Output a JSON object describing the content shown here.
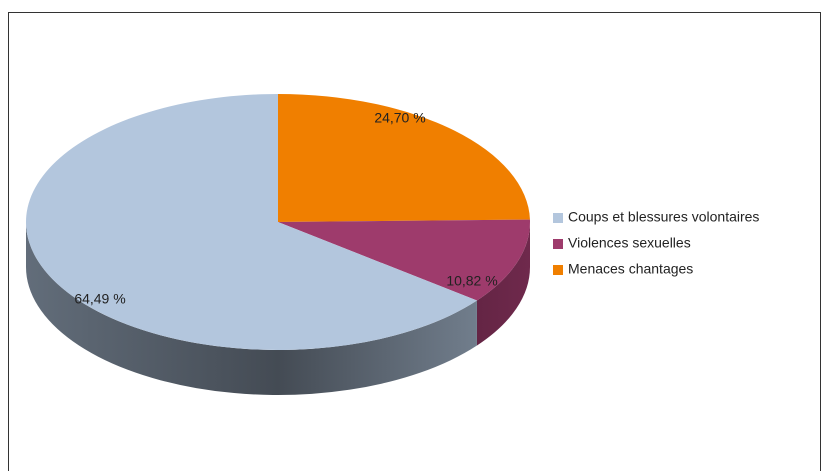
{
  "chart_data": {
    "type": "pie",
    "categories": [
      "Coups et blessures volontaires",
      "Violences sexuelles",
      "Menaces chantages"
    ],
    "values": [
      64.49,
      10.82,
      24.7
    ],
    "value_labels": [
      "64,49 %",
      "10,82 %",
      "24,70 %"
    ],
    "colors": [
      "#b3c6dd",
      "#9e3b6c",
      "#f07f00"
    ],
    "legend": "right"
  }
}
